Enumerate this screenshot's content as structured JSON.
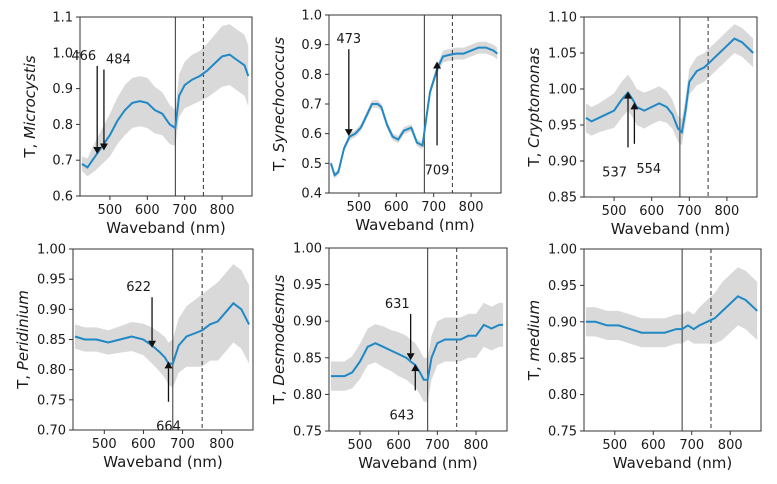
{
  "chart_data": [
    {
      "type": "line",
      "ylabel_prefix": "T,",
      "ylabel_italic": "Microcystis",
      "xlabel": "Waveband (nm)",
      "xlim": [
        420,
        880
      ],
      "ylim": [
        0.6,
        1.1
      ],
      "xticks": [
        500,
        600,
        700,
        800
      ],
      "yticks": [
        "0.6",
        "0.7",
        "0.8",
        "0.9",
        "1.0",
        "1.1"
      ],
      "vlines": [
        {
          "x": 675,
          "style": "solid"
        },
        {
          "x": 750,
          "style": "dashed"
        }
      ],
      "series": [
        {
          "name": "mean",
          "x": [
            425,
            440,
            460,
            480,
            500,
            520,
            540,
            560,
            580,
            600,
            620,
            640,
            660,
            675,
            685,
            700,
            720,
            740,
            760,
            780,
            800,
            820,
            840,
            860,
            870
          ],
          "values": [
            0.69,
            0.68,
            0.71,
            0.74,
            0.77,
            0.81,
            0.84,
            0.86,
            0.865,
            0.86,
            0.84,
            0.83,
            0.8,
            0.79,
            0.88,
            0.91,
            0.925,
            0.935,
            0.95,
            0.97,
            0.99,
            0.995,
            0.98,
            0.965,
            0.935
          ],
          "spread": [
            0.02,
            0.025,
            0.04,
            0.05,
            0.06,
            0.065,
            0.07,
            0.07,
            0.07,
            0.07,
            0.065,
            0.06,
            0.055,
            0.05,
            0.06,
            0.065,
            0.07,
            0.07,
            0.075,
            0.08,
            0.085,
            0.085,
            0.085,
            0.085,
            0.085
          ]
        }
      ],
      "annotations": [
        {
          "text": "466",
          "x": 466,
          "arrow_to_y": 0.72,
          "label_y": 0.98,
          "label_side": "left"
        },
        {
          "text": "484",
          "x": 484,
          "arrow_to_y": 0.73,
          "label_y": 0.97,
          "label_side": "right"
        }
      ]
    },
    {
      "type": "line",
      "ylabel_prefix": "T,",
      "ylabel_italic": "Synechococcus",
      "xlabel": "Waveband (nm)",
      "xlim": [
        420,
        880
      ],
      "ylim": [
        0.4,
        1.0
      ],
      "xticks": [
        500,
        600,
        700,
        800
      ],
      "yticks": [
        "0.4",
        "0.5",
        "0.6",
        "0.7",
        "0.8",
        "0.9",
        "1.0"
      ],
      "vlines": [
        {
          "x": 675,
          "style": "solid"
        },
        {
          "x": 750,
          "style": "dashed"
        }
      ],
      "series": [
        {
          "name": "mean",
          "x": [
            425,
            435,
            445,
            460,
            475,
            490,
            505,
            520,
            535,
            550,
            560,
            575,
            590,
            605,
            620,
            640,
            655,
            670,
            680,
            690,
            700,
            710,
            725,
            740,
            760,
            780,
            800,
            820,
            840,
            860,
            870
          ],
          "values": [
            0.5,
            0.46,
            0.47,
            0.55,
            0.59,
            0.6,
            0.62,
            0.66,
            0.7,
            0.7,
            0.69,
            0.63,
            0.59,
            0.58,
            0.61,
            0.62,
            0.57,
            0.56,
            0.65,
            0.74,
            0.78,
            0.82,
            0.86,
            0.865,
            0.87,
            0.87,
            0.88,
            0.89,
            0.89,
            0.88,
            0.87
          ],
          "spread": [
            0.01,
            0.01,
            0.01,
            0.01,
            0.012,
            0.012,
            0.012,
            0.012,
            0.012,
            0.012,
            0.012,
            0.012,
            0.012,
            0.012,
            0.012,
            0.012,
            0.012,
            0.012,
            0.015,
            0.015,
            0.015,
            0.015,
            0.02,
            0.02,
            0.02,
            0.02,
            0.02,
            0.02,
            0.02,
            0.02,
            0.02
          ]
        }
      ],
      "annotations": [
        {
          "text": "473",
          "x": 473,
          "arrow_to_y": 0.595,
          "label_y": 0.905,
          "label_side": "center"
        },
        {
          "text": "709",
          "x": 709,
          "arrow_to_y": 0.84,
          "label_y": 0.51,
          "label_side": "center"
        }
      ]
    },
    {
      "type": "line",
      "ylabel_prefix": "T,",
      "ylabel_italic": "Cryptomonas",
      "xlabel": "Waveband (nm)",
      "xlim": [
        420,
        880
      ],
      "ylim": [
        0.85,
        1.1
      ],
      "xticks": [
        500,
        600,
        700,
        800
      ],
      "yticks": [
        "0.85",
        "0.90",
        "0.95",
        "1.00",
        "1.05",
        "1.10"
      ],
      "vlines": [
        {
          "x": 675,
          "style": "solid"
        },
        {
          "x": 750,
          "style": "dashed"
        }
      ],
      "series": [
        {
          "name": "mean",
          "x": [
            425,
            440,
            460,
            480,
            500,
            520,
            537,
            550,
            560,
            580,
            600,
            620,
            640,
            655,
            670,
            680,
            690,
            700,
            720,
            740,
            760,
            780,
            800,
            820,
            840,
            860,
            870
          ],
          "values": [
            0.96,
            0.955,
            0.96,
            0.965,
            0.97,
            0.985,
            0.995,
            0.985,
            0.975,
            0.97,
            0.975,
            0.98,
            0.975,
            0.965,
            0.945,
            0.94,
            0.97,
            1.01,
            1.025,
            1.03,
            1.04,
            1.05,
            1.06,
            1.07,
            1.065,
            1.055,
            1.05
          ],
          "spread": [
            0.02,
            0.02,
            0.02,
            0.022,
            0.024,
            0.025,
            0.025,
            0.025,
            0.025,
            0.025,
            0.024,
            0.024,
            0.022,
            0.02,
            0.018,
            0.018,
            0.018,
            0.018,
            0.02,
            0.02,
            0.02,
            0.02,
            0.02,
            0.02,
            0.02,
            0.02,
            0.02
          ]
        }
      ],
      "annotations": [
        {
          "text": "537",
          "x": 537,
          "arrow_to_y": 0.995,
          "label_y": 0.898,
          "label_side": "left"
        },
        {
          "text": "554",
          "x": 554,
          "arrow_to_y": 0.98,
          "label_y": 0.903,
          "label_side": "right"
        }
      ]
    },
    {
      "type": "line",
      "ylabel_prefix": "T,",
      "ylabel_italic": "Peridinium",
      "xlabel": "Waveband (nm)",
      "xlim": [
        420,
        880
      ],
      "ylim": [
        0.7,
        1.0
      ],
      "xticks": [
        500,
        600,
        700,
        800
      ],
      "yticks": [
        "0.70",
        "0.75",
        "0.80",
        "0.85",
        "0.90",
        "0.95",
        "1.00"
      ],
      "vlines": [
        {
          "x": 675,
          "style": "solid"
        },
        {
          "x": 750,
          "style": "dashed"
        }
      ],
      "series": [
        {
          "name": "mean",
          "x": [
            425,
            450,
            480,
            510,
            540,
            570,
            600,
            622,
            640,
            655,
            664,
            675,
            690,
            710,
            730,
            750,
            770,
            790,
            810,
            830,
            850,
            870
          ],
          "values": [
            0.855,
            0.85,
            0.85,
            0.845,
            0.85,
            0.855,
            0.85,
            0.84,
            0.83,
            0.82,
            0.81,
            0.81,
            0.84,
            0.855,
            0.86,
            0.865,
            0.875,
            0.88,
            0.895,
            0.91,
            0.9,
            0.875
          ],
          "spread": [
            0.02,
            0.02,
            0.02,
            0.02,
            0.022,
            0.024,
            0.026,
            0.03,
            0.032,
            0.034,
            0.035,
            0.04,
            0.045,
            0.05,
            0.055,
            0.06,
            0.06,
            0.065,
            0.065,
            0.065,
            0.065,
            0.065
          ]
        }
      ],
      "annotations": [
        {
          "text": "622",
          "x": 622,
          "arrow_to_y": 0.838,
          "label_y": 0.93,
          "label_side": "left"
        },
        {
          "text": "664",
          "x": 664,
          "arrow_to_y": 0.812,
          "label_y": 0.722,
          "label_side": "center"
        }
      ]
    },
    {
      "type": "line",
      "ylabel_prefix": "T,",
      "ylabel_italic": "Desmodesmus",
      "xlabel": "Waveband (nm)",
      "xlim": [
        420,
        880
      ],
      "ylim": [
        0.75,
        1.0
      ],
      "xticks": [
        500,
        600,
        700,
        800
      ],
      "yticks": [
        "0.75",
        "0.80",
        "0.85",
        "0.90",
        "0.95",
        "1.00"
      ],
      "vlines": [
        {
          "x": 675,
          "style": "solid"
        },
        {
          "x": 750,
          "style": "dashed"
        }
      ],
      "series": [
        {
          "name": "mean",
          "x": [
            425,
            440,
            460,
            480,
            500,
            520,
            540,
            560,
            580,
            600,
            620,
            631,
            643,
            655,
            665,
            675,
            685,
            700,
            720,
            740,
            760,
            780,
            800,
            820,
            840,
            860,
            870
          ],
          "values": [
            0.825,
            0.825,
            0.825,
            0.83,
            0.845,
            0.865,
            0.87,
            0.865,
            0.86,
            0.855,
            0.85,
            0.845,
            0.84,
            0.83,
            0.82,
            0.82,
            0.85,
            0.87,
            0.875,
            0.875,
            0.875,
            0.88,
            0.88,
            0.895,
            0.89,
            0.895,
            0.895
          ],
          "spread": [
            0.02,
            0.02,
            0.02,
            0.022,
            0.024,
            0.025,
            0.026,
            0.028,
            0.028,
            0.03,
            0.03,
            0.03,
            0.03,
            0.03,
            0.03,
            0.03,
            0.03,
            0.03,
            0.03,
            0.03,
            0.03,
            0.03,
            0.03,
            0.03,
            0.03,
            0.03,
            0.03
          ]
        }
      ],
      "annotations": [
        {
          "text": "631",
          "x": 631,
          "arrow_to_y": 0.848,
          "label_y": 0.918,
          "label_side": "left"
        },
        {
          "text": "643",
          "x": 643,
          "arrow_to_y": 0.84,
          "label_y": 0.785,
          "label_side": "left"
        }
      ]
    },
    {
      "type": "line",
      "ylabel_prefix": "T,",
      "ylabel_italic": "medium",
      "xlabel": "Waveband (nm)",
      "xlim": [
        420,
        880
      ],
      "ylim": [
        0.75,
        1.0
      ],
      "xticks": [
        500,
        600,
        700,
        800
      ],
      "yticks": [
        "0.75",
        "0.80",
        "0.85",
        "0.90",
        "0.95",
        "1.00"
      ],
      "vlines": [
        {
          "x": 675,
          "style": "solid"
        },
        {
          "x": 750,
          "style": "dashed"
        }
      ],
      "series": [
        {
          "name": "mean",
          "x": [
            425,
            450,
            480,
            510,
            540,
            570,
            600,
            630,
            660,
            675,
            690,
            705,
            720,
            740,
            760,
            780,
            800,
            820,
            840,
            860,
            870
          ],
          "values": [
            0.9,
            0.9,
            0.895,
            0.895,
            0.89,
            0.885,
            0.885,
            0.885,
            0.89,
            0.89,
            0.895,
            0.89,
            0.895,
            0.9,
            0.905,
            0.915,
            0.925,
            0.935,
            0.93,
            0.92,
            0.915
          ],
          "spread": [
            0.02,
            0.02,
            0.02,
            0.02,
            0.02,
            0.02,
            0.02,
            0.02,
            0.02,
            0.02,
            0.02,
            0.02,
            0.025,
            0.03,
            0.035,
            0.04,
            0.04,
            0.04,
            0.04,
            0.04,
            0.04
          ]
        }
      ],
      "annotations": []
    }
  ]
}
